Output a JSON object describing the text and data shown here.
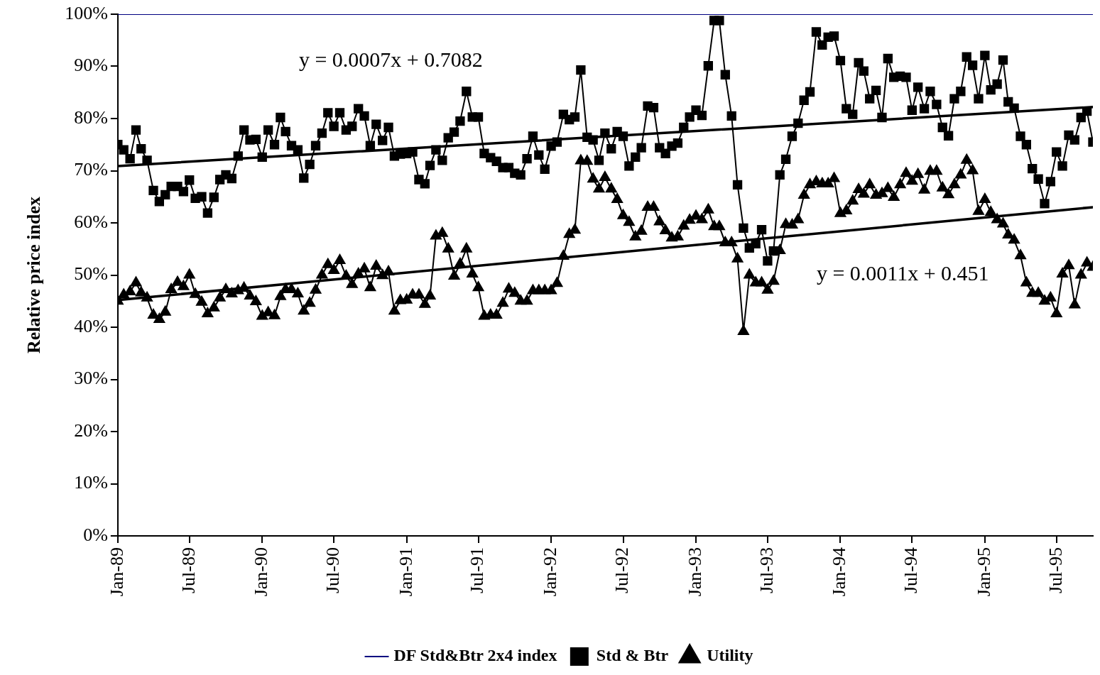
{
  "chart_data": {
    "type": "line",
    "ylabel": "Relative price index",
    "x": [
      "1989-01-01",
      "1989-01-16",
      "1989-02-01",
      "1989-02-16",
      "1989-03-01",
      "1989-03-16",
      "1989-04-01",
      "1989-04-16",
      "1989-05-01",
      "1989-05-16",
      "1989-06-01",
      "1989-06-16",
      "1989-07-01",
      "1989-07-16",
      "1989-08-01",
      "1989-08-16",
      "1989-09-01",
      "1989-09-16",
      "1989-10-01",
      "1989-10-16",
      "1989-11-01",
      "1989-11-16",
      "1989-12-01",
      "1989-12-16",
      "1990-01-01",
      "1990-01-16",
      "1990-02-01",
      "1990-02-16",
      "1990-03-01",
      "1990-03-16",
      "1990-04-01",
      "1990-04-16",
      "1990-05-01",
      "1990-05-16",
      "1990-06-01",
      "1990-06-16",
      "1990-07-01",
      "1990-07-16",
      "1990-08-01",
      "1990-08-16",
      "1990-09-01",
      "1990-09-16",
      "1990-10-01",
      "1990-10-16",
      "1990-11-01",
      "1990-11-16",
      "1990-12-01",
      "1990-12-16",
      "1991-01-01",
      "1991-01-16",
      "1991-02-01",
      "1991-02-16",
      "1991-03-01",
      "1991-03-16",
      "1991-04-01",
      "1991-04-16",
      "1991-05-01",
      "1991-05-16",
      "1991-06-01",
      "1991-06-16",
      "1991-07-01",
      "1991-07-16",
      "1991-08-01",
      "1991-08-16",
      "1991-09-01",
      "1991-09-16",
      "1991-10-01",
      "1991-10-16",
      "1991-11-01",
      "1991-11-16",
      "1991-12-01",
      "1991-12-16",
      "1992-01-01",
      "1992-01-16",
      "1992-02-01",
      "1992-02-16",
      "1992-03-01",
      "1992-03-16",
      "1992-04-01",
      "1992-04-16",
      "1992-05-01",
      "1992-05-16",
      "1992-06-01",
      "1992-06-16",
      "1992-07-01",
      "1992-07-16",
      "1992-08-01",
      "1992-08-16",
      "1992-09-01",
      "1992-09-16",
      "1992-10-01",
      "1992-10-16",
      "1992-11-01",
      "1992-11-16",
      "1992-12-01",
      "1992-12-16",
      "1993-01-01",
      "1993-01-16",
      "1993-02-01",
      "1993-02-16",
      "1993-03-01",
      "1993-03-16",
      "1993-04-01",
      "1993-04-16",
      "1993-05-01",
      "1993-05-16",
      "1993-06-01",
      "1993-06-16",
      "1993-07-01",
      "1993-07-16",
      "1993-08-01",
      "1993-08-16",
      "1993-09-01",
      "1993-09-16",
      "1993-10-01",
      "1993-10-16",
      "1993-11-01",
      "1993-11-16",
      "1993-12-01",
      "1993-12-16",
      "1994-01-01",
      "1994-01-16",
      "1994-02-01",
      "1994-02-16",
      "1994-03-01",
      "1994-03-16",
      "1994-04-01",
      "1994-04-16",
      "1994-05-01",
      "1994-05-16",
      "1994-06-01",
      "1994-06-16",
      "1994-07-01",
      "1994-07-16",
      "1994-08-01",
      "1994-08-16",
      "1994-09-01",
      "1994-09-16",
      "1994-10-01",
      "1994-10-16",
      "1994-11-01",
      "1994-11-16",
      "1994-12-01",
      "1994-12-16",
      "1995-01-01",
      "1995-01-16",
      "1995-02-01",
      "1995-02-16",
      "1995-03-01",
      "1995-03-16",
      "1995-04-01",
      "1995-04-16",
      "1995-05-01",
      "1995-05-16",
      "1995-06-01",
      "1995-06-16",
      "1995-07-01",
      "1995-07-16",
      "1995-08-01",
      "1995-08-16",
      "1995-09-01",
      "1995-09-16",
      "1995-10-01"
    ],
    "series": [
      {
        "name": "DF Std&Btr 2x4 index",
        "color": "#000080",
        "marker": "none",
        "x": [
          "1989-01-01",
          "1995-10-01"
        ],
        "values": [
          100,
          100
        ]
      },
      {
        "name": "Std & Btr",
        "color": "#000000",
        "marker": "square",
        "values": [
          75,
          74,
          72.3,
          77.8,
          74.2,
          72,
          66.2,
          64.1,
          65.4,
          67,
          67,
          66,
          68.2,
          64.7,
          65,
          61.9,
          64.9,
          68.3,
          69.2,
          68.5,
          72.8,
          77.8,
          75.9,
          76,
          72.6,
          77.8,
          75,
          80.2,
          77.5,
          74.8,
          74,
          68.6,
          71.2,
          74.8,
          77.2,
          81.1,
          78.5,
          81.1,
          77.8,
          78.5,
          81.9,
          80.5,
          74.8,
          78.9,
          75.8,
          78.3,
          72.8,
          73.2,
          73.3,
          73.6,
          68.3,
          67.5,
          71,
          74,
          72,
          76.3,
          77.4,
          79.5,
          85.2,
          80.3,
          80.3,
          73.3,
          72.5,
          71.8,
          70.6,
          70.6,
          69.5,
          69.2,
          72.3,
          76.6,
          73,
          70.3,
          74.7,
          75.5,
          80.8,
          79.8,
          80.3,
          89.3,
          76.4,
          75.9,
          72,
          77.2,
          74.2,
          77.5,
          76.6,
          70.9,
          72.6,
          74.4,
          82.4,
          82.1,
          74.4,
          73.3,
          74.7,
          75.3,
          78.3,
          80.3,
          81.6,
          80.6,
          90.1,
          98.8,
          98.8,
          88.4,
          80.5,
          67.3,
          59,
          55.2,
          56,
          58.7,
          52.7,
          54.6,
          69.2,
          72.2,
          76.6,
          79.1,
          83.5,
          85.1,
          96.6,
          94.1,
          95.6,
          95.8,
          91.1,
          81.9,
          80.8,
          90.7,
          89.1,
          83.8,
          85.4,
          80.2,
          91.5,
          87.9,
          88.1,
          87.9,
          81.6,
          86,
          81.9,
          85.2,
          82.7,
          78.3,
          76.7,
          83.8,
          85.2,
          91.8,
          90.2,
          83.8,
          92.1,
          85.5,
          86.6,
          91.2,
          83.2,
          82,
          76.6,
          75,
          70.4,
          68.4,
          63.7,
          67.9,
          73.6,
          70.9,
          76.8,
          75.9,
          80.2,
          81.4,
          75.5
        ]
      },
      {
        "name": "Utility",
        "color": "#000000",
        "marker": "triangle",
        "values": [
          45,
          46.2,
          46.8,
          48.5,
          46.6,
          45.6,
          42.3,
          41.5,
          42.9,
          47.2,
          48.6,
          47.8,
          50,
          46.3,
          44.8,
          42.6,
          43.7,
          45.6,
          47.2,
          46.4,
          47,
          47.5,
          46,
          44.9,
          42.1,
          42.8,
          42.2,
          45.9,
          47.2,
          47.2,
          46.4,
          43.1,
          44.6,
          47.1,
          50,
          52,
          50.9,
          52.8,
          49.8,
          48.2,
          50.2,
          51.2,
          47.6,
          51.7,
          49.9,
          50.6,
          43.1,
          45.1,
          45.2,
          46.2,
          46.2,
          44.4,
          46,
          57.5,
          58,
          55,
          49.8,
          52.1,
          55,
          50.2,
          47.6,
          42.1,
          42.3,
          42.3,
          44.6,
          47.3,
          46.5,
          45,
          45,
          47,
          47,
          47,
          47,
          48.4,
          53.6,
          57.8,
          58.6,
          71.9,
          71.8,
          68.4,
          66.5,
          68.7,
          66.5,
          64.5,
          61.4,
          60.1,
          57.3,
          58.4,
          63,
          63,
          60.2,
          58.5,
          57.1,
          57.3,
          59.4,
          60.5,
          61.3,
          60.6,
          62.5,
          59.3,
          59.3,
          56.2,
          56.2,
          53.1,
          39.2,
          50,
          48.5,
          48.5,
          47.1,
          48.8,
          54.7,
          59.7,
          59.6,
          60.6,
          65.3,
          67.3,
          67.9,
          67.5,
          67.5,
          68.5,
          61.8,
          62.3,
          64.2,
          66.4,
          65.5,
          67.3,
          65.3,
          65.6,
          66.6,
          64.9,
          67.3,
          69.5,
          68,
          69.3,
          66.3,
          69.9,
          69.9,
          66.7,
          65.4,
          67.3,
          69.2,
          72,
          70,
          62.2,
          64.5,
          62,
          60.6,
          59.8,
          57.7,
          56.7,
          53.7,
          48.5,
          46.5,
          46.5,
          45,
          45.6,
          42.6,
          50.2,
          51.8,
          44.3,
          50,
          52.3,
          51.5
        ]
      },
      {
        "type": "line",
        "color": "#000000",
        "x": [
          "1989-01-01",
          "1995-10-01"
        ],
        "values": [
          70.9,
          82.2
        ]
      },
      {
        "type": "line",
        "color": "#000000",
        "x": [
          "1989-01-01",
          "1995-10-01"
        ],
        "values": [
          45.2,
          63.0
        ]
      }
    ],
    "xlim": [
      "1989-01-01",
      "1995-10-01"
    ],
    "xticks": [
      {
        "value": "1989-01-01",
        "label": "Jan-89"
      },
      {
        "value": "1989-07-01",
        "label": "Jul-89"
      },
      {
        "value": "1990-01-01",
        "label": "Jan-90"
      },
      {
        "value": "1990-07-01",
        "label": "Jul-90"
      },
      {
        "value": "1991-01-01",
        "label": "Jan-91"
      },
      {
        "value": "1991-07-01",
        "label": "Jul-91"
      },
      {
        "value": "1992-01-01",
        "label": "Jan-92"
      },
      {
        "value": "1992-07-01",
        "label": "Jul-92"
      },
      {
        "value": "1993-01-01",
        "label": "Jan-93"
      },
      {
        "value": "1993-07-01",
        "label": "Jul-93"
      },
      {
        "value": "1994-01-01",
        "label": "Jan-94"
      },
      {
        "value": "1994-07-01",
        "label": "Jul-94"
      },
      {
        "value": "1995-01-01",
        "label": "Jan-95"
      },
      {
        "value": "1995-07-01",
        "label": "Jul-95"
      }
    ],
    "ylim": [
      0,
      100
    ],
    "yticks": [
      {
        "value": 0,
        "label": "0%"
      },
      {
        "value": 10,
        "label": "10%"
      },
      {
        "value": 20,
        "label": "20%"
      },
      {
        "value": 30,
        "label": "30%"
      },
      {
        "value": 40,
        "label": "40%"
      },
      {
        "value": 50,
        "label": "50%"
      },
      {
        "value": 60,
        "label": "60%"
      },
      {
        "value": 70,
        "label": "70%"
      },
      {
        "value": 80,
        "label": "80%"
      },
      {
        "value": 90,
        "label": "90%"
      },
      {
        "value": 100,
        "label": "100%"
      }
    ],
    "annotations": [
      "y = 0.0007x + 0.7082",
      "y = 0.0011x + 0.451"
    ],
    "legend": "bottom"
  }
}
